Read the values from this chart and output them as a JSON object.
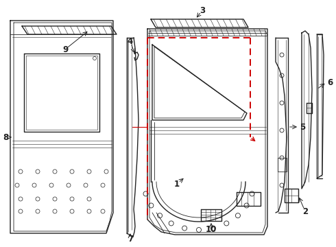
{
  "bg_color": "#ffffff",
  "line_color": "#222222",
  "red_color": "#cc0000",
  "figsize": [
    4.9,
    3.6
  ],
  "dpi": 100
}
